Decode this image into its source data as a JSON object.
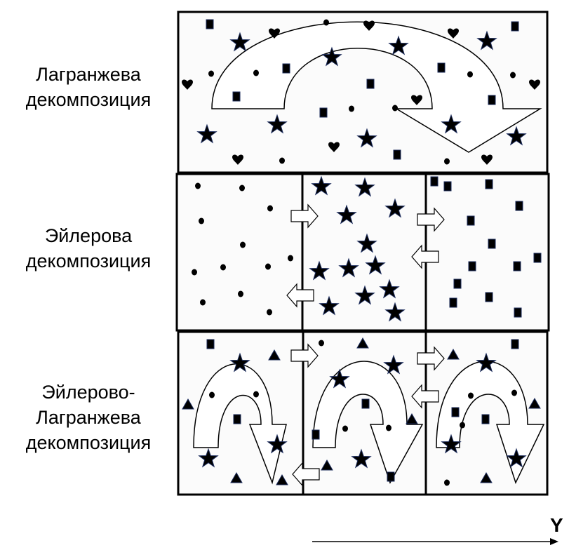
{
  "labels": {
    "lagrangian": [
      "Лагранжева",
      "декомпозиция"
    ],
    "eulerian": [
      "Эйлерова",
      "декомпозиция"
    ],
    "hybrid": [
      "Эйлерово-",
      "Лагранжева",
      "декомпозиция"
    ]
  },
  "axis": {
    "label": "Y"
  },
  "colors": {
    "ink": "#000000",
    "panel": "#fbfbfb",
    "accent": "#1a2a5a"
  },
  "symbols": [
    "square",
    "star",
    "heart",
    "dot",
    "triangle"
  ]
}
